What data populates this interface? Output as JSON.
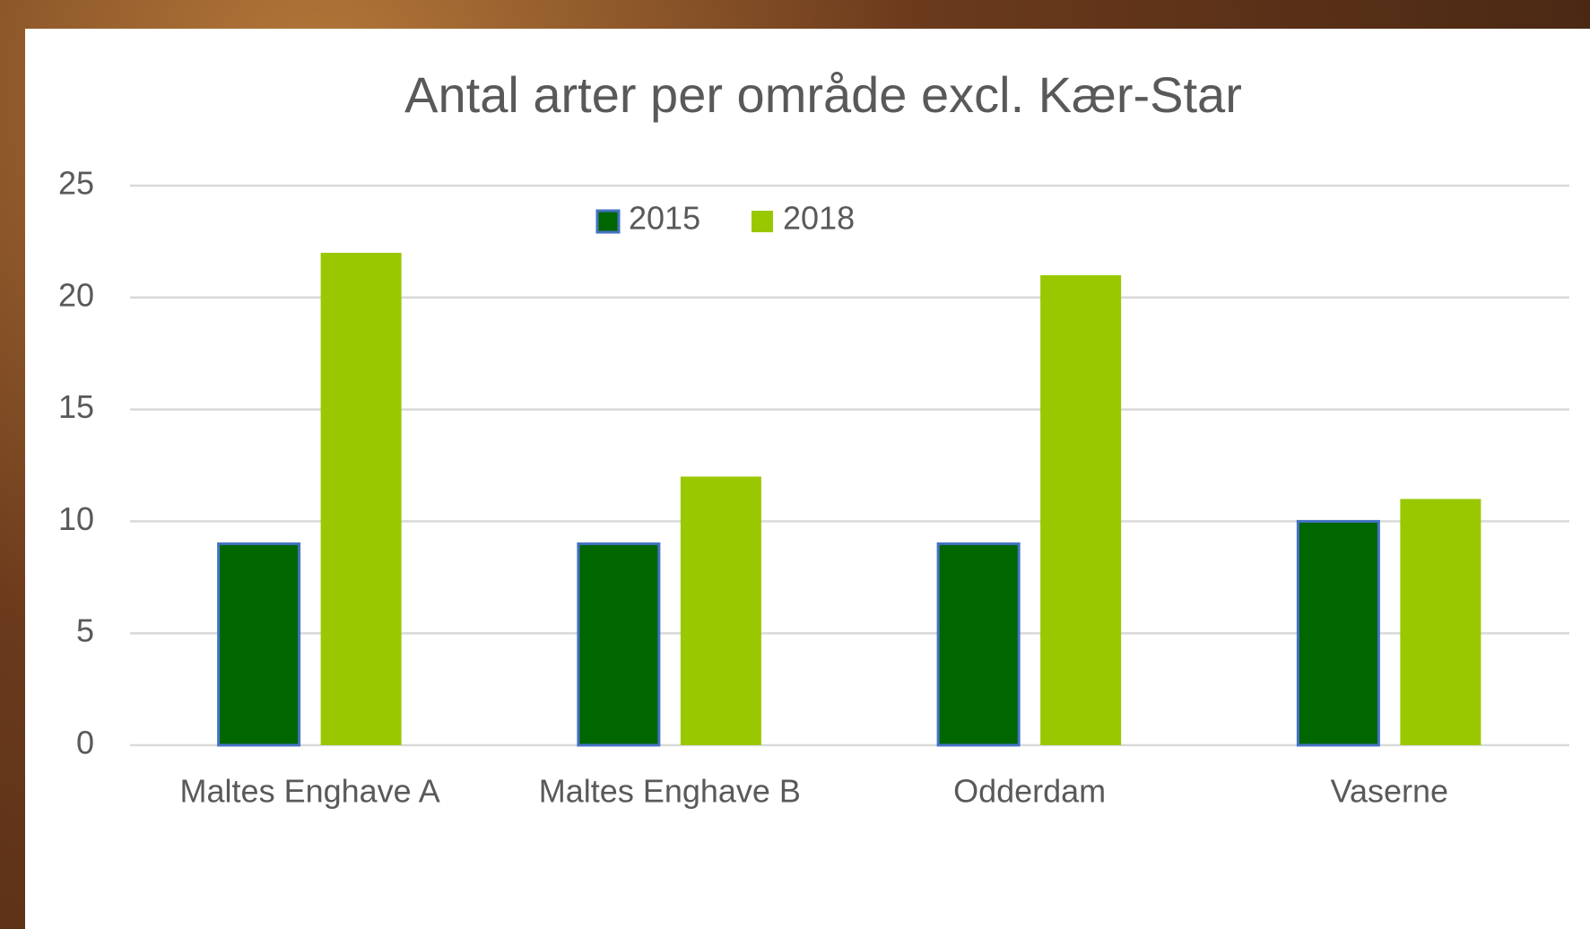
{
  "chart_data": {
    "type": "bar",
    "title": "Antal arter per område excl. Kær-Star",
    "categories": [
      "Maltes Enghave A",
      "Maltes Enghave B",
      "Odderdam",
      "Vaserne"
    ],
    "series": [
      {
        "name": "2015",
        "color": "#006600",
        "values": [
          9,
          9,
          9,
          10
        ]
      },
      {
        "name": "2018",
        "color": "#99c800",
        "values": [
          22,
          12,
          21,
          11
        ]
      }
    ],
    "ylim": [
      0,
      25
    ],
    "yticks": [
      0,
      5,
      10,
      15,
      20,
      25
    ],
    "grid": true
  }
}
